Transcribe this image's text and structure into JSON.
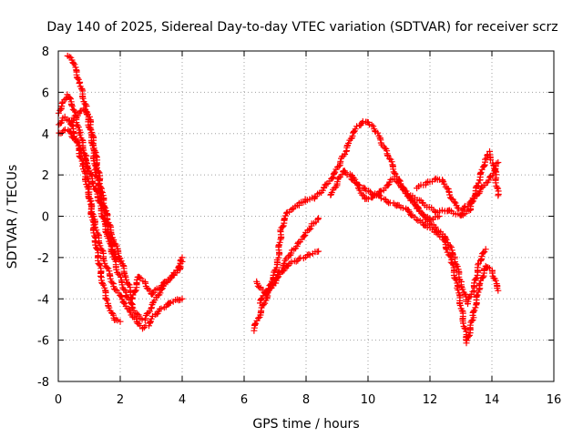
{
  "chart_data": {
    "type": "scatter",
    "title": "Day 140 of 2025, Sidereal Day-to-day VTEC variation (SDTVAR) for receiver scrz",
    "xlabel": "GPS time / hours",
    "ylabel": "SDTVAR / TECUs",
    "xlim": [
      0,
      16
    ],
    "ylim": [
      -8,
      8
    ],
    "x_ticks": [
      0,
      2,
      4,
      6,
      8,
      10,
      12,
      14,
      16
    ],
    "y_ticks": [
      -8,
      -6,
      -4,
      -2,
      0,
      2,
      4,
      6,
      8
    ],
    "x_tick_labels": [
      "0",
      "2",
      "4",
      "6",
      "8",
      "10",
      "12",
      "14",
      "16"
    ],
    "y_tick_labels": [
      "-8",
      "-6",
      "-4",
      "-2",
      "0",
      "2",
      "4",
      "6",
      "8"
    ],
    "grid": true,
    "marker": "+",
    "color": "#ff0000",
    "series": [
      {
        "points": [
          [
            0.3,
            7.8
          ],
          [
            0.5,
            7.4
          ],
          [
            0.7,
            6.4
          ],
          [
            0.9,
            5.2
          ],
          [
            1.1,
            3.6
          ],
          [
            1.2,
            2.2
          ],
          [
            1.4,
            0.8
          ],
          [
            1.6,
            -0.6
          ],
          [
            1.8,
            -1.8
          ],
          [
            2.0,
            -2.2
          ]
        ]
      },
      {
        "points": [
          [
            0.0,
            5.0
          ],
          [
            0.2,
            5.6
          ],
          [
            0.3,
            5.9
          ],
          [
            0.5,
            5.2
          ],
          [
            0.7,
            4.0
          ],
          [
            0.9,
            2.8
          ],
          [
            1.0,
            1.0
          ],
          [
            1.2,
            -1.2
          ],
          [
            1.4,
            -3.0
          ],
          [
            1.6,
            -4.2
          ],
          [
            1.8,
            -5.0
          ],
          [
            2.0,
            -5.1
          ]
        ]
      },
      {
        "points": [
          [
            0.0,
            4.4
          ],
          [
            0.2,
            4.8
          ],
          [
            0.4,
            4.5
          ],
          [
            0.6,
            3.6
          ],
          [
            0.8,
            2.4
          ],
          [
            1.0,
            1.0
          ],
          [
            1.2,
            -0.5
          ],
          [
            1.5,
            -2.2
          ],
          [
            1.8,
            -3.4
          ],
          [
            2.1,
            -4.1
          ],
          [
            2.3,
            -4.6
          ],
          [
            2.5,
            -5.0
          ],
          [
            2.7,
            -5.4
          ],
          [
            2.9,
            -5.3
          ],
          [
            3.1,
            -4.8
          ],
          [
            3.4,
            -4.4
          ],
          [
            3.7,
            -4.1
          ],
          [
            4.0,
            -4.0
          ]
        ]
      },
      {
        "points": [
          [
            0.0,
            4.0
          ],
          [
            0.3,
            4.2
          ],
          [
            0.6,
            3.6
          ],
          [
            0.8,
            3.0
          ],
          [
            1.0,
            2.2
          ],
          [
            1.3,
            0.8
          ],
          [
            1.6,
            -1.0
          ],
          [
            1.9,
            -2.6
          ],
          [
            2.2,
            -3.8
          ],
          [
            2.4,
            -4.4
          ],
          [
            2.6,
            -4.9
          ],
          [
            2.8,
            -5.0
          ],
          [
            3.0,
            -4.4
          ],
          [
            3.3,
            -3.6
          ],
          [
            3.6,
            -3.0
          ],
          [
            3.8,
            -2.7
          ],
          [
            4.0,
            -2.2
          ]
        ]
      },
      {
        "points": [
          [
            0.4,
            4.6
          ],
          [
            0.6,
            4.9
          ],
          [
            0.8,
            5.2
          ],
          [
            1.0,
            4.8
          ],
          [
            1.2,
            3.0
          ],
          [
            1.4,
            1.2
          ],
          [
            1.6,
            -0.2
          ],
          [
            1.8,
            -1.2
          ],
          [
            2.0,
            -2.0
          ],
          [
            2.2,
            -3.0
          ],
          [
            2.4,
            -4.0
          ],
          [
            2.6,
            -2.9
          ],
          [
            2.8,
            -3.2
          ],
          [
            3.0,
            -3.8
          ],
          [
            3.3,
            -3.4
          ],
          [
            3.6,
            -3.0
          ],
          [
            3.9,
            -2.6
          ],
          [
            4.0,
            -2.0
          ]
        ]
      },
      {
        "points": [
          [
            6.3,
            -5.5
          ],
          [
            6.5,
            -4.8
          ],
          [
            6.7,
            -4.0
          ],
          [
            6.9,
            -3.3
          ],
          [
            7.1,
            -2.0
          ],
          [
            7.2,
            -0.6
          ],
          [
            7.4,
            0.2
          ],
          [
            7.6,
            0.4
          ],
          [
            7.8,
            0.6
          ],
          [
            8.0,
            0.8
          ],
          [
            8.3,
            0.9
          ],
          [
            8.6,
            1.4
          ],
          [
            8.9,
            2.0
          ],
          [
            9.1,
            2.6
          ],
          [
            9.3,
            3.2
          ],
          [
            9.5,
            4.0
          ],
          [
            9.7,
            4.4
          ],
          [
            9.9,
            4.6
          ],
          [
            10.1,
            4.4
          ],
          [
            10.3,
            4.0
          ],
          [
            10.5,
            3.4
          ],
          [
            10.7,
            2.8
          ],
          [
            10.9,
            2.0
          ],
          [
            11.1,
            1.4
          ],
          [
            11.4,
            0.8
          ],
          [
            11.7,
            0.2
          ],
          [
            12.0,
            -0.2
          ],
          [
            12.3,
            0.0
          ]
        ]
      },
      {
        "points": [
          [
            6.5,
            -4.2
          ],
          [
            6.8,
            -3.4
          ],
          [
            7.0,
            -3.0
          ],
          [
            7.2,
            -2.6
          ],
          [
            7.4,
            -2.0
          ],
          [
            7.6,
            -1.6
          ],
          [
            7.8,
            -1.2
          ],
          [
            8.0,
            -0.8
          ],
          [
            8.2,
            -0.4
          ],
          [
            8.4,
            -0.1
          ]
        ]
      },
      {
        "points": [
          [
            6.4,
            -3.2
          ],
          [
            6.7,
            -3.8
          ],
          [
            7.0,
            -3.2
          ],
          [
            7.3,
            -2.5
          ],
          [
            7.6,
            -2.2
          ],
          [
            7.9,
            -2.0
          ],
          [
            8.2,
            -1.8
          ],
          [
            8.4,
            -1.7
          ]
        ]
      },
      {
        "points": [
          [
            8.8,
            1.0
          ],
          [
            9.0,
            1.6
          ],
          [
            9.2,
            2.2
          ],
          [
            9.4,
            2.0
          ],
          [
            9.6,
            1.6
          ],
          [
            9.8,
            1.4
          ],
          [
            10.0,
            1.2
          ],
          [
            10.2,
            1.0
          ],
          [
            10.5,
            1.3
          ],
          [
            10.8,
            1.8
          ],
          [
            11.0,
            1.6
          ],
          [
            11.3,
            1.0
          ],
          [
            11.6,
            0.4
          ],
          [
            11.9,
            -0.2
          ],
          [
            12.2,
            -0.6
          ],
          [
            12.5,
            -1.0
          ],
          [
            12.8,
            -2.0
          ],
          [
            13.0,
            -3.2
          ],
          [
            13.2,
            -4.2
          ],
          [
            13.4,
            -3.6
          ],
          [
            13.6,
            -2.2
          ],
          [
            13.8,
            -1.6
          ]
        ]
      },
      {
        "points": [
          [
            9.5,
            2.0
          ],
          [
            9.7,
            1.4
          ],
          [
            9.9,
            0.8
          ],
          [
            10.1,
            0.9
          ],
          [
            10.3,
            1.1
          ],
          [
            10.5,
            0.8
          ],
          [
            10.8,
            0.6
          ],
          [
            11.2,
            0.4
          ],
          [
            11.6,
            -0.2
          ],
          [
            12.0,
            -0.6
          ],
          [
            12.4,
            -1.0
          ],
          [
            12.7,
            -2.2
          ],
          [
            12.9,
            -3.5
          ],
          [
            13.1,
            -5.2
          ],
          [
            13.2,
            -6.1
          ],
          [
            13.4,
            -4.8
          ],
          [
            13.6,
            -3.4
          ],
          [
            13.8,
            -2.4
          ],
          [
            14.0,
            -2.6
          ],
          [
            14.2,
            -3.6
          ]
        ]
      },
      {
        "points": [
          [
            11.6,
            1.4
          ],
          [
            11.9,
            1.6
          ],
          [
            12.2,
            1.8
          ],
          [
            12.4,
            1.8
          ],
          [
            12.6,
            1.2
          ],
          [
            12.8,
            0.6
          ],
          [
            13.0,
            0.3
          ],
          [
            13.2,
            0.5
          ],
          [
            13.5,
            1.0
          ],
          [
            13.8,
            1.6
          ],
          [
            14.0,
            2.0
          ],
          [
            14.2,
            2.6
          ]
        ]
      },
      {
        "points": [
          [
            11.4,
            1.0
          ],
          [
            11.8,
            0.6
          ],
          [
            12.2,
            0.2
          ],
          [
            12.6,
            0.3
          ],
          [
            13.0,
            0.0
          ],
          [
            13.3,
            0.3
          ],
          [
            13.6,
            1.8
          ],
          [
            13.8,
            2.8
          ],
          [
            13.9,
            3.1
          ],
          [
            14.0,
            2.6
          ],
          [
            14.1,
            2.2
          ],
          [
            14.2,
            1.0
          ]
        ]
      }
    ]
  }
}
